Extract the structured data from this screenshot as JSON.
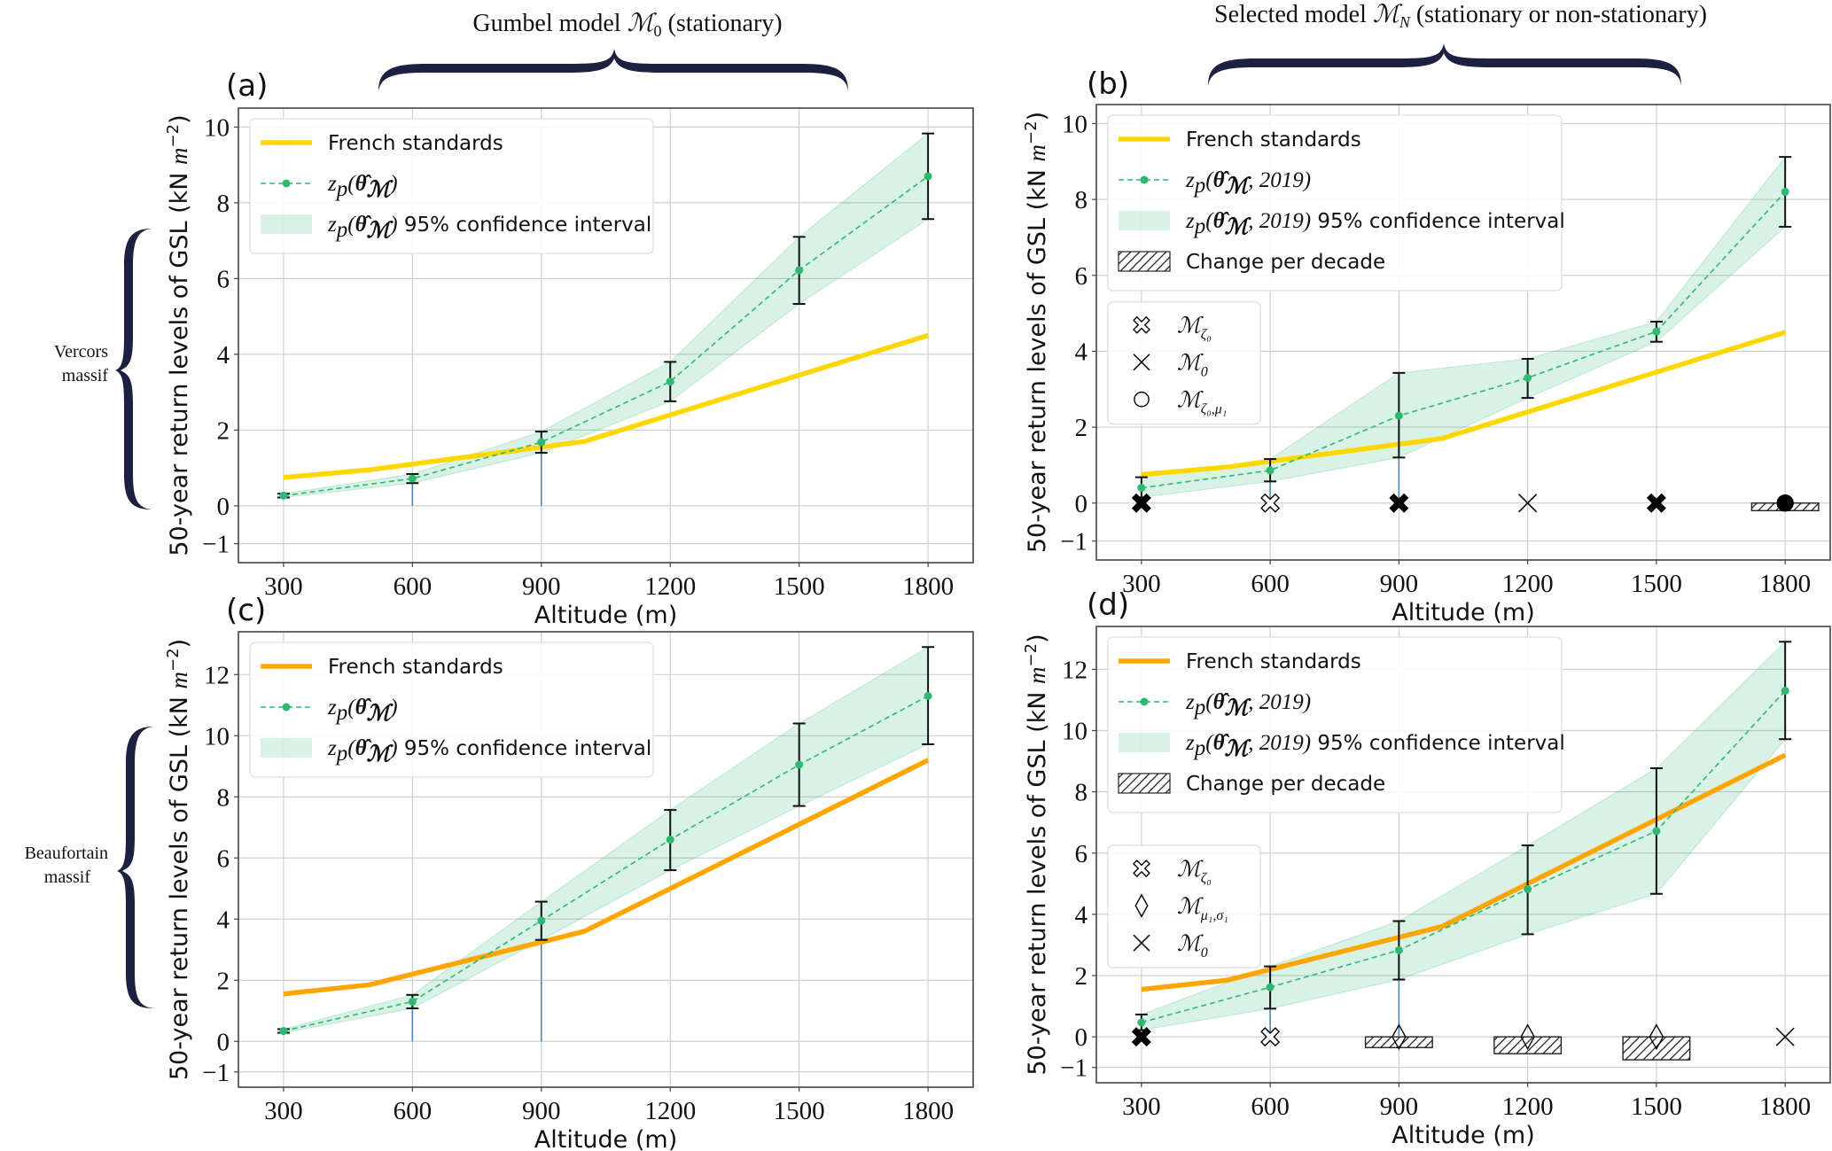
{
  "figure": {
    "column_titles": [
      "Gumbel model ℳ₀ (stationary)",
      "Selected model ℳ_N (stationary or non-stationary)"
    ],
    "column_title_parts": [
      {
        "pre": "Gumbel model ",
        "sym": "ℳ",
        "sub": "0",
        "post": " (stationary)"
      },
      {
        "pre": "Selected model ",
        "sym": "ℳ",
        "sub": "N",
        "post": " (stationary or non-stationary)"
      }
    ],
    "row_labels": [
      [
        "Vercors",
        "massif"
      ],
      [
        "Beaufortain",
        "massif"
      ]
    ],
    "colors": {
      "brace": "#1c2142",
      "french_vercors": "#ffd700",
      "french_beaufortain": "#ffa500",
      "return_level": "#2eb872",
      "ci_fill": "#2eb872",
      "ci_opacity": 0.18,
      "errorbar": "#111111",
      "stem": "#4f86b8",
      "grid": "#d0d0d0"
    }
  },
  "chart_data": [
    {
      "id": "a",
      "panel_tag": "(a)",
      "type": "line",
      "massif": "Vercors",
      "model": "Gumbel model M0 (stationary)",
      "xlabel": "Altitude (m)",
      "ylabel": "50-year return levels of GSL (kN m^-2)",
      "xlim": [
        195,
        1905
      ],
      "ylim": [
        -1.5,
        10.5
      ],
      "xticks": [
        300,
        600,
        900,
        1200,
        1500,
        1800
      ],
      "yticks": [
        -1,
        0,
        2,
        4,
        6,
        8,
        10
      ],
      "grid": true,
      "legend_placement": "top-left",
      "legend": [
        {
          "kind": "line",
          "label": "French standards"
        },
        {
          "kind": "point-line",
          "label": "z_p(θ̂_ℳ)"
        },
        {
          "kind": "fill",
          "label": "z_p(θ̂_ℳ) 95% confidence interval"
        }
      ],
      "french_color_key": "french_vercors",
      "french_standards": {
        "x": [
          300,
          500,
          1000,
          1800
        ],
        "y": [
          0.75,
          0.95,
          1.7,
          4.5
        ]
      },
      "return_levels": {
        "x": [
          300,
          600,
          900,
          1200,
          1500,
          1800
        ],
        "y": [
          0.27,
          0.72,
          1.68,
          3.28,
          6.22,
          8.7
        ],
        "ci_low": [
          0.22,
          0.6,
          1.4,
          2.76,
          5.33,
          7.57
        ],
        "ci_high": [
          0.32,
          0.84,
          1.96,
          3.8,
          7.1,
          9.83
        ]
      },
      "stems": [
        {
          "x": 600,
          "from": 0,
          "to": 0.6
        },
        {
          "x": 900,
          "from": 0,
          "to": 1.4
        }
      ],
      "model_markers": [],
      "change_per_decade": []
    },
    {
      "id": "b",
      "panel_tag": "(b)",
      "type": "line",
      "massif": "Vercors",
      "model": "Selected model MN (stationary or non-stationary)",
      "xlabel": "Altitude (m)",
      "ylabel": "50-year return levels of GSL (kN m^-2)",
      "xlim": [
        195,
        1905
      ],
      "ylim": [
        -1.5,
        10.5
      ],
      "xticks": [
        300,
        600,
        900,
        1200,
        1500,
        1800
      ],
      "yticks": [
        -1,
        0,
        2,
        4,
        6,
        8,
        10
      ],
      "grid": true,
      "legend_placement": "top-left",
      "legend": [
        {
          "kind": "line",
          "label": "French standards"
        },
        {
          "kind": "point-line",
          "label": "z_p(θ̂_ℳ, 2019)"
        },
        {
          "kind": "fill",
          "label": "z_p(θ̂_ℳ, 2019) 95% confidence interval"
        },
        {
          "kind": "hatch",
          "label": "Change per decade"
        }
      ],
      "model_legend_placement": "center-left",
      "model_legend": [
        {
          "marker": "thick-x-open",
          "label": "ℳ",
          "sub": "ζ₀"
        },
        {
          "marker": "x",
          "label": "ℳ",
          "sub": "0"
        },
        {
          "marker": "circle-open",
          "label": "ℳ",
          "sub": "ζ₀,μ₁"
        }
      ],
      "french_color_key": "french_vercors",
      "french_standards": {
        "x": [
          300,
          500,
          1000,
          1800
        ],
        "y": [
          0.75,
          0.95,
          1.7,
          4.5
        ]
      },
      "return_levels": {
        "x": [
          300,
          600,
          900,
          1200,
          1500,
          1800
        ],
        "y": [
          0.4,
          0.86,
          2.3,
          3.3,
          4.52,
          8.2
        ],
        "ci_low": [
          0.15,
          0.57,
          1.2,
          2.77,
          4.25,
          7.28
        ],
        "ci_high": [
          0.68,
          1.16,
          3.43,
          3.8,
          4.78,
          9.12
        ]
      },
      "stems": [
        {
          "x": 600,
          "from": 0,
          "to": 0.57
        },
        {
          "x": 900,
          "from": 0,
          "to": 1.2
        }
      ],
      "model_markers": [
        {
          "x": 300,
          "marker": "thick-x-filled"
        },
        {
          "x": 600,
          "marker": "thick-x-open"
        },
        {
          "x": 900,
          "marker": "thick-x-filled"
        },
        {
          "x": 1200,
          "marker": "x"
        },
        {
          "x": 1500,
          "marker": "thick-x-filled"
        },
        {
          "x": 1800,
          "marker": "circle-filled"
        }
      ],
      "change_per_decade": [
        {
          "x": 1800,
          "value": -0.2
        }
      ]
    },
    {
      "id": "c",
      "panel_tag": "(c)",
      "type": "line",
      "massif": "Beaufortain",
      "model": "Gumbel model M0 (stationary)",
      "xlabel": "Altitude (m)",
      "ylabel": "50-year return levels of GSL (kN m^-2)",
      "xlim": [
        195,
        1905
      ],
      "ylim": [
        -1.5,
        13.4
      ],
      "xticks": [
        300,
        600,
        900,
        1200,
        1500,
        1800
      ],
      "yticks": [
        -1,
        0,
        2,
        4,
        6,
        8,
        10,
        12
      ],
      "grid": true,
      "legend_placement": "top-left",
      "legend": [
        {
          "kind": "line",
          "label": "French standards"
        },
        {
          "kind": "point-line",
          "label": "z_p(θ̂_ℳ)"
        },
        {
          "kind": "fill",
          "label": "z_p(θ̂_ℳ) 95% confidence interval"
        }
      ],
      "french_color_key": "french_beaufortain",
      "french_standards": {
        "x": [
          300,
          500,
          1000,
          1800
        ],
        "y": [
          1.55,
          1.85,
          3.6,
          9.2
        ]
      },
      "return_levels": {
        "x": [
          300,
          600,
          900,
          1200,
          1500,
          1800
        ],
        "y": [
          0.34,
          1.3,
          3.95,
          6.6,
          9.05,
          11.3
        ],
        "ci_low": [
          0.28,
          1.08,
          3.32,
          5.6,
          7.7,
          9.72
        ],
        "ci_high": [
          0.4,
          1.52,
          4.57,
          7.57,
          10.4,
          12.9
        ]
      },
      "stems": [
        {
          "x": 600,
          "from": 0,
          "to": 1.08
        },
        {
          "x": 900,
          "from": 0,
          "to": 3.32
        }
      ],
      "model_markers": [],
      "change_per_decade": []
    },
    {
      "id": "d",
      "panel_tag": "(d)",
      "type": "line",
      "massif": "Beaufortain",
      "model": "Selected model MN (stationary or non-stationary)",
      "xlabel": "Altitude (m)",
      "ylabel": "50-year return levels of GSL (kN m^-2)",
      "xlim": [
        195,
        1905
      ],
      "ylim": [
        -1.5,
        13.4
      ],
      "xticks": [
        300,
        600,
        900,
        1200,
        1500,
        1800
      ],
      "yticks": [
        -1,
        0,
        2,
        4,
        6,
        8,
        10,
        12
      ],
      "grid": true,
      "legend_placement": "top-left",
      "legend": [
        {
          "kind": "line",
          "label": "French standards"
        },
        {
          "kind": "point-line",
          "label": "z_p(θ̂_ℳ, 2019)"
        },
        {
          "kind": "fill",
          "label": "z_p(θ̂_ℳ, 2019) 95% confidence interval"
        },
        {
          "kind": "hatch",
          "label": "Change per decade"
        }
      ],
      "model_legend_placement": "center-left",
      "model_legend": [
        {
          "marker": "thick-x-open",
          "label": "ℳ",
          "sub": "ζ₀"
        },
        {
          "marker": "diamond-open",
          "label": "ℳ",
          "sub": "μ₁,σ₁"
        },
        {
          "marker": "x",
          "label": "ℳ",
          "sub": "0"
        }
      ],
      "french_color_key": "french_beaufortain",
      "french_standards": {
        "x": [
          300,
          500,
          1000,
          1800
        ],
        "y": [
          1.55,
          1.85,
          3.6,
          9.2
        ]
      },
      "return_levels": {
        "x": [
          300,
          600,
          900,
          1200,
          1500,
          1800
        ],
        "y": [
          0.47,
          1.62,
          2.83,
          4.82,
          6.72,
          11.3
        ],
        "ci_low": [
          0.22,
          0.92,
          1.87,
          3.35,
          4.67,
          9.72
        ],
        "ci_high": [
          0.73,
          2.3,
          3.78,
          6.25,
          8.77,
          12.9
        ]
      },
      "stems": [
        {
          "x": 600,
          "from": 0,
          "to": 0.92
        },
        {
          "x": 900,
          "from": 0,
          "to": 1.87
        }
      ],
      "model_markers": [
        {
          "x": 300,
          "marker": "thick-x-filled"
        },
        {
          "x": 600,
          "marker": "thick-x-open"
        },
        {
          "x": 900,
          "marker": "diamond-open"
        },
        {
          "x": 1200,
          "marker": "diamond-open"
        },
        {
          "x": 1500,
          "marker": "diamond-open"
        },
        {
          "x": 1800,
          "marker": "x"
        }
      ],
      "change_per_decade": [
        {
          "x": 900,
          "value": -0.35
        },
        {
          "x": 1200,
          "value": -0.55
        },
        {
          "x": 1500,
          "value": -0.75
        }
      ]
    }
  ]
}
